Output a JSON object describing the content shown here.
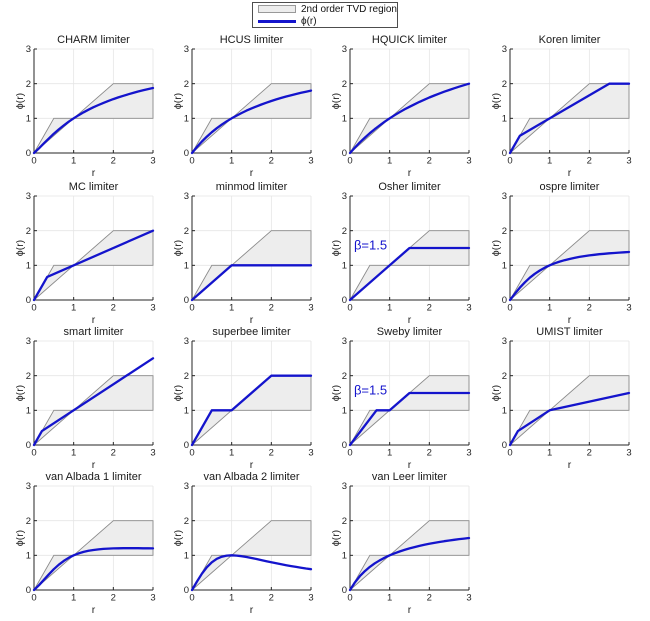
{
  "figure": {
    "legend": {
      "items": [
        {
          "swatch": "tvd-region-patch",
          "label": "2nd order TVD region"
        },
        {
          "swatch": "phi-curve-line",
          "label": "ϕ(r)"
        }
      ]
    },
    "colors": {
      "curve": "#1414cc",
      "annotation": "#1414cc",
      "region_fill": "#ededed",
      "region_edge": "#8a8a8a",
      "grid": "#e5e5e5",
      "axis": "#262626",
      "title": "#1a1a1a"
    }
  },
  "chart_data": {
    "type": "line",
    "layout": {
      "rows": 4,
      "cols": 4
    },
    "xlabel": "r",
    "ylabel": "ϕ(r)",
    "xlim": [
      0,
      3
    ],
    "ylim": [
      0,
      3
    ],
    "xticks": [
      "0",
      "1",
      "2",
      "3"
    ],
    "yticks": [
      "0",
      "1",
      "2",
      "3"
    ],
    "grid": true,
    "tvd_region": [
      [
        0,
        0
      ],
      [
        0.5,
        1
      ],
      [
        1,
        1
      ],
      [
        2,
        2
      ],
      [
        3,
        2
      ],
      [
        3,
        1
      ],
      [
        1,
        1
      ]
    ],
    "subplots": [
      {
        "title": "CHARM limiter",
        "annotation": "",
        "curve": [
          [
            0,
            0
          ],
          [
            0.125,
            0.136
          ],
          [
            0.25,
            0.28
          ],
          [
            0.375,
            0.421
          ],
          [
            0.5,
            0.556
          ],
          [
            0.625,
            0.68
          ],
          [
            0.75,
            0.796
          ],
          [
            0.875,
            0.902
          ],
          [
            1,
            1
          ],
          [
            1.125,
            1.09
          ],
          [
            1.25,
            1.173
          ],
          [
            1.375,
            1.249
          ],
          [
            1.5,
            1.32
          ],
          [
            1.625,
            1.385
          ],
          [
            1.75,
            1.446
          ],
          [
            1.875,
            1.503
          ],
          [
            2,
            1.556
          ],
          [
            2.125,
            1.605
          ],
          [
            2.25,
            1.651
          ],
          [
            2.375,
            1.694
          ],
          [
            2.5,
            1.735
          ],
          [
            2.625,
            1.773
          ],
          [
            2.75,
            1.809
          ],
          [
            2.875,
            1.843
          ],
          [
            3,
            1.875
          ]
        ]
      },
      {
        "title": "HCUS limiter",
        "annotation": "",
        "curve": [
          [
            0,
            0
          ],
          [
            0.125,
            0.176
          ],
          [
            0.25,
            0.333
          ],
          [
            0.375,
            0.474
          ],
          [
            0.5,
            0.6
          ],
          [
            0.625,
            0.714
          ],
          [
            0.75,
            0.818
          ],
          [
            0.875,
            0.913
          ],
          [
            1,
            1
          ],
          [
            1.125,
            1.08
          ],
          [
            1.25,
            1.154
          ],
          [
            1.375,
            1.222
          ],
          [
            1.5,
            1.286
          ],
          [
            1.625,
            1.345
          ],
          [
            1.75,
            1.4
          ],
          [
            1.875,
            1.452
          ],
          [
            2,
            1.5
          ],
          [
            2.125,
            1.545
          ],
          [
            2.25,
            1.588
          ],
          [
            2.375,
            1.629
          ],
          [
            2.5,
            1.667
          ],
          [
            2.625,
            1.703
          ],
          [
            2.75,
            1.737
          ],
          [
            2.875,
            1.769
          ],
          [
            3,
            1.8
          ]
        ]
      },
      {
        "title": "HQUICK limiter",
        "annotation": "",
        "curve": [
          [
            0,
            0
          ],
          [
            0.125,
            0.16
          ],
          [
            0.25,
            0.308
          ],
          [
            0.375,
            0.444
          ],
          [
            0.5,
            0.571
          ],
          [
            0.625,
            0.69
          ],
          [
            0.75,
            0.8
          ],
          [
            0.875,
            0.903
          ],
          [
            1,
            1
          ],
          [
            1.125,
            1.091
          ],
          [
            1.25,
            1.176
          ],
          [
            1.375,
            1.257
          ],
          [
            1.5,
            1.333
          ],
          [
            1.625,
            1.405
          ],
          [
            1.75,
            1.474
          ],
          [
            1.875,
            1.538
          ],
          [
            2,
            1.6
          ],
          [
            2.125,
            1.659
          ],
          [
            2.25,
            1.714
          ],
          [
            2.375,
            1.767
          ],
          [
            2.5,
            1.818
          ],
          [
            2.625,
            1.867
          ],
          [
            2.75,
            1.913
          ],
          [
            2.875,
            1.957
          ],
          [
            3,
            2
          ]
        ]
      },
      {
        "title": "Koren limiter",
        "annotation": "",
        "curve": [
          [
            0,
            0
          ],
          [
            0.25,
            0.5
          ],
          [
            2.5,
            2
          ],
          [
            3,
            2
          ]
        ]
      },
      {
        "title": "MC limiter",
        "annotation": "",
        "curve": [
          [
            0,
            0
          ],
          [
            0.333,
            0.667
          ],
          [
            3,
            2
          ]
        ]
      },
      {
        "title": "minmod limiter",
        "annotation": "",
        "curve": [
          [
            0,
            0
          ],
          [
            1,
            1
          ],
          [
            3,
            1
          ]
        ]
      },
      {
        "title": "Osher limiter",
        "annotation": "β=1.5",
        "curve": [
          [
            0,
            0
          ],
          [
            1.5,
            1.5
          ],
          [
            3,
            1.5
          ]
        ]
      },
      {
        "title": "ospre limiter",
        "annotation": "",
        "curve": [
          [
            0,
            0
          ],
          [
            0.125,
            0.185
          ],
          [
            0.25,
            0.357
          ],
          [
            0.375,
            0.51
          ],
          [
            0.5,
            0.643
          ],
          [
            0.625,
            0.756
          ],
          [
            0.75,
            0.851
          ],
          [
            0.875,
            0.932
          ],
          [
            1,
            1
          ],
          [
            1.125,
            1.058
          ],
          [
            1.25,
            1.107
          ],
          [
            1.375,
            1.148
          ],
          [
            1.5,
            1.184
          ],
          [
            1.625,
            1.215
          ],
          [
            1.75,
            1.242
          ],
          [
            1.875,
            1.265
          ],
          [
            2,
            1.286
          ],
          [
            2.125,
            1.304
          ],
          [
            2.25,
            1.32
          ],
          [
            2.375,
            1.334
          ],
          [
            2.5,
            1.346
          ],
          [
            2.625,
            1.357
          ],
          [
            2.75,
            1.367
          ],
          [
            2.875,
            1.376
          ],
          [
            3,
            1.385
          ]
        ]
      },
      {
        "title": "smart limiter",
        "annotation": "",
        "curve": [
          [
            0,
            0
          ],
          [
            0.2,
            0.4
          ],
          [
            3,
            2.5
          ]
        ]
      },
      {
        "title": "superbee limiter",
        "annotation": "",
        "curve": [
          [
            0,
            0
          ],
          [
            0.5,
            1
          ],
          [
            1,
            1
          ],
          [
            2,
            2
          ],
          [
            3,
            2
          ]
        ]
      },
      {
        "title": "Sweby limiter",
        "annotation": "β=1.5",
        "curve": [
          [
            0,
            0
          ],
          [
            0.667,
            1
          ],
          [
            1,
            1
          ],
          [
            1.5,
            1.5
          ],
          [
            3,
            1.5
          ]
        ]
      },
      {
        "title": "UMIST limiter",
        "annotation": "",
        "curve": [
          [
            0,
            0
          ],
          [
            0.2,
            0.4
          ],
          [
            1,
            1
          ],
          [
            3,
            1.5
          ]
        ]
      },
      {
        "title": "van Albada 1 limiter",
        "annotation": "",
        "curve": [
          [
            0,
            0
          ],
          [
            0.125,
            0.138
          ],
          [
            0.25,
            0.294
          ],
          [
            0.375,
            0.452
          ],
          [
            0.5,
            0.6
          ],
          [
            0.625,
            0.73
          ],
          [
            0.75,
            0.84
          ],
          [
            0.875,
            0.929
          ],
          [
            1,
            1
          ],
          [
            1.125,
            1.055
          ],
          [
            1.25,
            1.098
          ],
          [
            1.375,
            1.13
          ],
          [
            1.5,
            1.154
          ],
          [
            1.625,
            1.172
          ],
          [
            1.75,
            1.185
          ],
          [
            1.875,
            1.194
          ],
          [
            2,
            1.2
          ],
          [
            2.125,
            1.204
          ],
          [
            2.25,
            1.206
          ],
          [
            2.375,
            1.207
          ],
          [
            2.5,
            1.207
          ],
          [
            2.625,
            1.206
          ],
          [
            2.75,
            1.204
          ],
          [
            2.875,
            1.202
          ],
          [
            3,
            1.2
          ]
        ]
      },
      {
        "title": "van Albada 2 limiter",
        "annotation": "",
        "curve": [
          [
            0,
            0
          ],
          [
            0.125,
            0.246
          ],
          [
            0.25,
            0.471
          ],
          [
            0.375,
            0.658
          ],
          [
            0.5,
            0.8
          ],
          [
            0.625,
            0.899
          ],
          [
            0.75,
            0.96
          ],
          [
            0.875,
            0.991
          ],
          [
            1,
            1
          ],
          [
            1.125,
            0.993
          ],
          [
            1.25,
            0.976
          ],
          [
            1.375,
            0.951
          ],
          [
            1.5,
            0.923
          ],
          [
            1.625,
            0.893
          ],
          [
            1.75,
            0.862
          ],
          [
            1.875,
            0.83
          ],
          [
            2,
            0.8
          ],
          [
            2.125,
            0.771
          ],
          [
            2.25,
            0.742
          ],
          [
            2.375,
            0.715
          ],
          [
            2.5,
            0.69
          ],
          [
            2.625,
            0.665
          ],
          [
            2.75,
            0.642
          ],
          [
            2.875,
            0.621
          ],
          [
            3,
            0.6
          ]
        ]
      },
      {
        "title": "van Leer limiter",
        "annotation": "",
        "curve": [
          [
            0,
            0
          ],
          [
            0.125,
            0.222
          ],
          [
            0.25,
            0.4
          ],
          [
            0.375,
            0.545
          ],
          [
            0.5,
            0.667
          ],
          [
            0.625,
            0.769
          ],
          [
            0.75,
            0.857
          ],
          [
            0.875,
            0.933
          ],
          [
            1,
            1
          ],
          [
            1.125,
            1.059
          ],
          [
            1.25,
            1.111
          ],
          [
            1.375,
            1.158
          ],
          [
            1.5,
            1.2
          ],
          [
            1.625,
            1.238
          ],
          [
            1.75,
            1.273
          ],
          [
            1.875,
            1.304
          ],
          [
            2,
            1.333
          ],
          [
            2.125,
            1.36
          ],
          [
            2.25,
            1.385
          ],
          [
            2.375,
            1.407
          ],
          [
            2.5,
            1.429
          ],
          [
            2.625,
            1.448
          ],
          [
            2.75,
            1.467
          ],
          [
            2.875,
            1.484
          ],
          [
            3,
            1.5
          ]
        ]
      }
    ]
  }
}
